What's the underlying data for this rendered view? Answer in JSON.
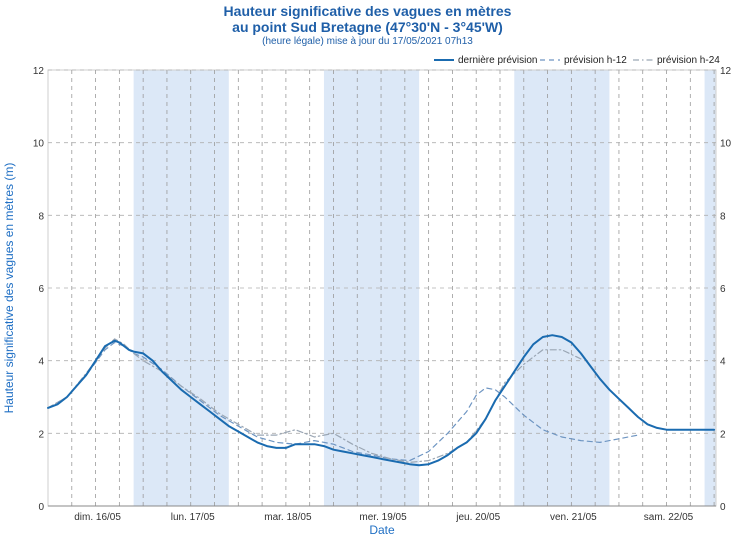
{
  "chart": {
    "title_line1": "Hauteur significative des vagues en mètres",
    "title_line2": "au point Sud Bretagne (47°30'N - 3°45'W)",
    "subtitle": "(heure légale) mise à jour du 17/05/2021 07h13"
  },
  "chart_data": {
    "type": "line",
    "xlabel": "Date",
    "ylabel": "Hauteur significative des vagues en mètres (m)",
    "ylim": [
      0,
      12
    ],
    "xlim": [
      0,
      7.02
    ],
    "x_unit": "days from 15/05/2021 00h00",
    "yticks": [
      0,
      2,
      4,
      6,
      8,
      10,
      12
    ],
    "xtick_labels": [
      "dim. 16/05",
      "lun. 17/05",
      "mar. 18/05",
      "mer. 19/05",
      "jeu. 20/05",
      "ven. 21/05",
      "sam. 22/05"
    ],
    "night_bands": [
      [
        0.9,
        1.9
      ],
      [
        2.9,
        3.9
      ],
      [
        4.9,
        5.9
      ],
      [
        6.9,
        7.02
      ]
    ],
    "grid": true,
    "legend_position": "top-right",
    "colors": {
      "band": "#dce8f7",
      "main": "#1a6bb0",
      "h12": "#6e95c2",
      "h24": "#9aa6b4"
    },
    "series": [
      {
        "name": "dernière prévision",
        "style": "solid",
        "x": [
          0,
          0.1,
          0.2,
          0.3,
          0.4,
          0.5,
          0.6,
          0.7,
          0.75,
          0.85,
          0.9,
          1.0,
          1.1,
          1.2,
          1.3,
          1.4,
          1.5,
          1.6,
          1.7,
          1.8,
          1.9,
          2.0,
          2.1,
          2.2,
          2.3,
          2.4,
          2.5,
          2.6,
          2.7,
          2.8,
          2.9,
          3.0,
          3.1,
          3.2,
          3.3,
          3.4,
          3.5,
          3.6,
          3.7,
          3.8,
          3.9,
          4.0,
          4.1,
          4.2,
          4.3,
          4.4,
          4.5,
          4.6,
          4.7,
          4.8,
          4.9,
          5.0,
          5.1,
          5.2,
          5.3,
          5.4,
          5.5,
          5.6,
          5.7,
          5.8,
          5.9,
          6.0,
          6.1,
          6.2,
          6.3,
          6.4,
          6.5,
          6.6,
          6.7,
          6.8,
          6.9,
          7.0
        ],
        "values": [
          2.7,
          2.8,
          3.0,
          3.3,
          3.6,
          4.0,
          4.4,
          4.55,
          4.5,
          4.3,
          4.25,
          4.2,
          4.0,
          3.7,
          3.45,
          3.2,
          3.0,
          2.8,
          2.6,
          2.4,
          2.2,
          2.05,
          1.9,
          1.75,
          1.65,
          1.6,
          1.6,
          1.7,
          1.7,
          1.7,
          1.65,
          1.55,
          1.5,
          1.45,
          1.4,
          1.35,
          1.3,
          1.25,
          1.2,
          1.15,
          1.12,
          1.15,
          1.25,
          1.4,
          1.6,
          1.75,
          2.0,
          2.4,
          2.9,
          3.3,
          3.7,
          4.1,
          4.45,
          4.65,
          4.7,
          4.65,
          4.5,
          4.2,
          3.85,
          3.5,
          3.2,
          2.95,
          2.7,
          2.45,
          2.25,
          2.15,
          2.1,
          2.1,
          2.1,
          2.1,
          2.1,
          2.1
        ]
      },
      {
        "name": "prévision h-12",
        "style": "dash",
        "x": [
          0,
          0.2,
          0.4,
          0.6,
          0.7,
          0.8,
          0.9,
          1.0,
          1.2,
          1.4,
          1.6,
          1.8,
          2.0,
          2.2,
          2.4,
          2.6,
          2.8,
          3.0,
          3.2,
          3.4,
          3.6,
          3.8,
          4.0,
          4.2,
          4.4,
          4.5,
          4.6,
          4.7,
          4.8,
          5.0,
          5.2,
          5.4,
          5.6,
          5.8,
          6.0,
          6.2
        ],
        "values": [
          2.7,
          3.0,
          3.6,
          4.3,
          4.5,
          4.4,
          4.2,
          4.1,
          3.75,
          3.3,
          2.9,
          2.5,
          2.2,
          1.9,
          1.75,
          1.7,
          1.8,
          1.7,
          1.5,
          1.4,
          1.3,
          1.25,
          1.5,
          2.0,
          2.6,
          3.05,
          3.25,
          3.2,
          3.0,
          2.5,
          2.1,
          1.9,
          1.8,
          1.75,
          1.85,
          1.95
        ]
      },
      {
        "name": "prévision h-24",
        "style": "dashdot",
        "x": [
          0,
          0.2,
          0.4,
          0.6,
          0.7,
          0.8,
          0.9,
          1.0,
          1.2,
          1.4,
          1.6,
          1.8,
          2.0,
          2.2,
          2.4,
          2.6,
          2.8,
          3.0,
          3.2,
          3.4,
          3.6,
          3.8,
          4.0,
          4.2,
          4.4,
          4.6,
          4.8,
          5.0,
          5.2,
          5.4,
          5.6
        ],
        "values": [
          2.7,
          3.0,
          3.65,
          4.35,
          4.6,
          4.45,
          4.2,
          4.0,
          3.7,
          3.3,
          2.95,
          2.55,
          2.25,
          1.95,
          1.95,
          2.1,
          1.9,
          2.0,
          1.7,
          1.45,
          1.3,
          1.2,
          1.25,
          1.45,
          1.75,
          2.4,
          3.4,
          3.9,
          4.3,
          4.3,
          4.05
        ]
      }
    ]
  }
}
